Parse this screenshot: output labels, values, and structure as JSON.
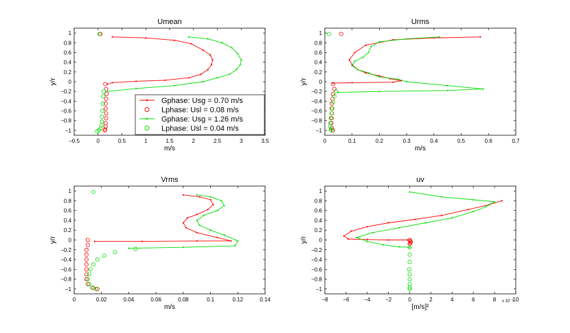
{
  "figure": {
    "colors": {
      "series1": "#ff0000",
      "series2": "#00dd00",
      "axes": "#000000"
    },
    "legend": {
      "entries": [
        {
          "label": "Gphase: Usg = 0.70 m/s",
          "marker": "line-dot",
          "color": "#ff0000"
        },
        {
          "label": "Lphase: Usl = 0.08 m/s",
          "marker": "circle",
          "color": "#ff0000"
        },
        {
          "label": "Gphase: Usg = 1.26 m/s",
          "marker": "line-dot",
          "color": "#00dd00"
        },
        {
          "label": "Lphase: Usl = 0.04 m/s",
          "marker": "circle",
          "color": "#00dd00"
        }
      ]
    }
  },
  "chart_data": [
    {
      "type": "line",
      "title": "Umean",
      "xlabel": "m/s",
      "ylabel": "y/r",
      "xlim": [
        -0.5,
        3.5
      ],
      "ylim": [
        -1.1,
        1.1
      ],
      "xticks": [
        "−0.5",
        "0",
        "0.5",
        "1",
        "1.5",
        "2",
        "2.5",
        "3",
        "3.5"
      ],
      "xtick_values": [
        -0.5,
        0,
        0.5,
        1,
        1.5,
        2,
        2.5,
        3,
        3.5
      ],
      "yticks": [
        "−1",
        "−0.8",
        "−0.6",
        "−0.4",
        "−0.2",
        "0",
        "0.2",
        "0.4",
        "0.6",
        "0.8",
        "1"
      ],
      "ytick_values": [
        -1,
        -0.8,
        -0.6,
        -0.4,
        -0.2,
        0,
        0.2,
        0.4,
        0.6,
        0.8,
        1
      ],
      "multiplier": "",
      "series": [
        {
          "name": "Gphase: Usg = 0.70 m/s",
          "color": "#ff0000",
          "kind": "line",
          "x": [
            0.3,
            1.0,
            1.6,
            1.95,
            2.2,
            2.35,
            2.4,
            2.38,
            2.3,
            2.15,
            1.9,
            1.4,
            0.8,
            0.3,
            0.2
          ],
          "y": [
            0.92,
            0.9,
            0.85,
            0.78,
            0.65,
            0.55,
            0.45,
            0.35,
            0.25,
            0.15,
            0.08,
            0.03,
            0.01,
            -0.02,
            -0.05
          ]
        },
        {
          "name": "Lphase: Usl = 0.08 m/s",
          "color": "#ff0000",
          "kind": "circle",
          "x": [
            0.15,
            0.17,
            0.18,
            0.17,
            0.16,
            0.16,
            0.17,
            0.17,
            0.16,
            0.16,
            0.15,
            0.14,
            0.05
          ],
          "y": [
            -0.05,
            -0.15,
            -0.25,
            -0.35,
            -0.45,
            -0.55,
            -0.65,
            -0.75,
            -0.85,
            -0.92,
            -0.98,
            -1.0,
            0.98
          ]
        },
        {
          "name": "Gphase: Usg = 1.26 m/s",
          "color": "#00dd00",
          "kind": "line",
          "x": [
            1.9,
            2.3,
            2.6,
            2.8,
            2.92,
            3.0,
            2.98,
            2.9,
            2.75,
            2.5,
            2.2,
            1.6,
            0.8,
            0.2
          ],
          "y": [
            0.92,
            0.88,
            0.8,
            0.7,
            0.58,
            0.45,
            0.35,
            0.25,
            0.15,
            0.08,
            0.0,
            -0.08,
            -0.14,
            -0.2
          ]
        },
        {
          "name": "Lphase: Usl = 0.04 m/s",
          "color": "#00dd00",
          "kind": "circle",
          "x": [
            0.12,
            0.11,
            0.1,
            0.09,
            0.08,
            0.08,
            0.07,
            0.05,
            0.02,
            -0.02,
            0.03
          ],
          "y": [
            -0.2,
            -0.3,
            -0.45,
            -0.6,
            -0.72,
            -0.82,
            -0.9,
            -0.96,
            -1.0,
            -1.02,
            0.98
          ]
        }
      ]
    },
    {
      "type": "line",
      "title": "Urms",
      "xlabel": "m/s",
      "ylabel": "y/r",
      "xlim": [
        0,
        0.7
      ],
      "ylim": [
        -1.1,
        1.1
      ],
      "xticks": [
        "0",
        "0.1",
        "0.2",
        "0.3",
        "0.4",
        "0.5",
        "0.6",
        "0.7"
      ],
      "xtick_values": [
        0,
        0.1,
        0.2,
        0.3,
        0.4,
        0.5,
        0.6,
        0.7
      ],
      "yticks": [
        "−1",
        "−0.8",
        "−0.6",
        "−0.4",
        "−0.2",
        "0",
        "0.2",
        "0.4",
        "0.6",
        "0.8",
        "1"
      ],
      "ytick_values": [
        -1,
        -0.8,
        -0.6,
        -0.4,
        -0.2,
        0,
        0.2,
        0.4,
        0.6,
        0.8,
        1
      ],
      "multiplier": "",
      "series": [
        {
          "name": "Gphase: Usg = 0.70 m/s",
          "color": "#ff0000",
          "kind": "line",
          "x": [
            0.57,
            0.4,
            0.25,
            0.15,
            0.11,
            0.09,
            0.1,
            0.12,
            0.15,
            0.2,
            0.24,
            0.28,
            0.25,
            0.1,
            0.03
          ],
          "y": [
            0.92,
            0.9,
            0.86,
            0.75,
            0.6,
            0.45,
            0.35,
            0.25,
            0.18,
            0.12,
            0.06,
            0.02,
            -0.01,
            -0.02,
            -0.03
          ]
        },
        {
          "name": "Lphase: Usl = 0.08 m/s",
          "color": "#ff0000",
          "kind": "circle",
          "x": [
            0.03,
            0.035,
            0.03,
            0.028,
            0.025,
            0.025,
            0.026,
            0.025,
            0.024,
            0.025,
            0.03,
            0.06
          ],
          "y": [
            -0.05,
            -0.15,
            -0.25,
            -0.35,
            -0.45,
            -0.55,
            -0.65,
            -0.75,
            -0.85,
            -0.95,
            -1.0,
            0.98
          ]
        },
        {
          "name": "Gphase: Usg = 1.26 m/s",
          "color": "#00dd00",
          "kind": "line",
          "x": [
            0.42,
            0.3,
            0.2,
            0.17,
            0.16,
            0.14,
            0.11,
            0.1,
            0.12,
            0.16,
            0.2,
            0.27,
            0.3,
            0.45,
            0.58,
            0.45,
            0.2,
            0.05
          ],
          "y": [
            0.92,
            0.88,
            0.82,
            0.72,
            0.6,
            0.5,
            0.42,
            0.33,
            0.25,
            0.18,
            0.1,
            0.05,
            0.0,
            -0.08,
            -0.15,
            -0.18,
            -0.2,
            -0.22
          ]
        },
        {
          "name": "Lphase: Usl = 0.04 m/s",
          "color": "#00dd00",
          "kind": "circle",
          "x": [
            0.04,
            0.035,
            0.03,
            0.027,
            0.025,
            0.022,
            0.02,
            0.02,
            0.022,
            0.025,
            0.015
          ],
          "y": [
            -0.2,
            -0.3,
            -0.42,
            -0.55,
            -0.65,
            -0.75,
            -0.85,
            -0.92,
            -0.98,
            -1.0,
            0.98
          ]
        }
      ]
    },
    {
      "type": "line",
      "title": "Vrms",
      "xlabel": "m/s",
      "ylabel": "y/r",
      "xlim": [
        0,
        0.14
      ],
      "ylim": [
        -1.1,
        1.1
      ],
      "xticks": [
        "0",
        "0.02",
        "0.04",
        "0.06",
        "0.08",
        "0.1",
        "0.12",
        "0.14"
      ],
      "xtick_values": [
        0,
        0.02,
        0.04,
        0.06,
        0.08,
        0.1,
        0.12,
        0.14
      ],
      "yticks": [
        "−1",
        "−0.8",
        "−0.6",
        "−0.4",
        "−0.2",
        "0",
        "0.2",
        "0.4",
        "0.6",
        "0.8",
        "1"
      ],
      "ytick_values": [
        -1,
        -0.8,
        -0.6,
        -0.4,
        -0.2,
        0,
        0.2,
        0.4,
        0.6,
        0.8,
        1
      ],
      "multiplier": "",
      "series": [
        {
          "name": "Gphase: Usg = 0.70 m/s",
          "color": "#ff0000",
          "kind": "line",
          "x": [
            0.08,
            0.092,
            0.1,
            0.102,
            0.098,
            0.09,
            0.083,
            0.08,
            0.082,
            0.09,
            0.105,
            0.115,
            0.09,
            0.05,
            0.015
          ],
          "y": [
            0.92,
            0.88,
            0.82,
            0.72,
            0.62,
            0.52,
            0.45,
            0.35,
            0.25,
            0.15,
            0.05,
            -0.02,
            -0.02,
            -0.03,
            -0.03
          ]
        },
        {
          "name": "Lphase: Usl = 0.08 m/s",
          "color": "#ff0000",
          "kind": "circle",
          "x": [
            0.01,
            0.01,
            0.009,
            0.009,
            0.009,
            0.009,
            0.009,
            0.009,
            0.009,
            0.01,
            0.014,
            0.017
          ],
          "y": [
            0.0,
            -0.1,
            -0.2,
            -0.3,
            -0.4,
            -0.5,
            -0.6,
            -0.7,
            -0.8,
            -0.9,
            -0.98,
            -1.0
          ]
        },
        {
          "name": "Gphase: Usg = 1.26 m/s",
          "color": "#00dd00",
          "kind": "line",
          "x": [
            0.09,
            0.1,
            0.108,
            0.11,
            0.105,
            0.095,
            0.09,
            0.092,
            0.1,
            0.11,
            0.12,
            0.118,
            0.08,
            0.04
          ],
          "y": [
            0.92,
            0.88,
            0.8,
            0.7,
            0.6,
            0.5,
            0.4,
            0.3,
            0.2,
            0.1,
            -0.02,
            -0.12,
            -0.15,
            -0.17
          ]
        },
        {
          "name": "Lphase: Usl = 0.04 m/s",
          "color": "#00dd00",
          "kind": "circle",
          "x": [
            0.045,
            0.03,
            0.022,
            0.017,
            0.014,
            0.012,
            0.011,
            0.01,
            0.011,
            0.013,
            0.016,
            0.014
          ],
          "y": [
            -0.18,
            -0.25,
            -0.32,
            -0.4,
            -0.5,
            -0.6,
            -0.7,
            -0.8,
            -0.9,
            -0.97,
            -1.0,
            0.98
          ]
        }
      ]
    },
    {
      "type": "line",
      "title": "uv",
      "xlabel": "[m/s]²",
      "ylabel": "y/r",
      "xlim": [
        -8,
        10
      ],
      "ylim": [
        -1.1,
        1.1
      ],
      "xticks": [
        "−8",
        "−6",
        "−4",
        "−2",
        "0",
        "2",
        "4",
        "6",
        "8",
        "10"
      ],
      "xtick_values": [
        -8,
        -6,
        -4,
        -2,
        0,
        2,
        4,
        6,
        8,
        10
      ],
      "yticks": [
        "−1",
        "−0.8",
        "−0.6",
        "−0.4",
        "−0.2",
        "0",
        "0.2",
        "0.4",
        "0.6",
        "0.8",
        "1"
      ],
      "ytick_values": [
        -1,
        -0.8,
        -0.6,
        -0.4,
        -0.2,
        0,
        0.2,
        0.4,
        0.6,
        0.8,
        1
      ],
      "multiplier": "x 10⁻³",
      "series": [
        {
          "name": "Gphase: Usg = 0.70 m/s",
          "color": "#ff0000",
          "kind": "line",
          "x": [
            8.7,
            7.5,
            5.5,
            3.0,
            0.5,
            -2.0,
            -4.0,
            -5.5,
            -6.2,
            -5.8,
            -4.0,
            -2.0,
            -0.2
          ],
          "y": [
            0.8,
            0.72,
            0.62,
            0.5,
            0.42,
            0.35,
            0.27,
            0.18,
            0.08,
            0.02,
            0.01,
            0.0,
            0.0
          ]
        },
        {
          "name": "Lphase: Usl = 0.08 m/s",
          "color": "#ff0000",
          "kind": "circle",
          "x": [
            0.0,
            0.05,
            0.1,
            0.05,
            0.0
          ],
          "y": [
            0.0,
            -0.02,
            -0.04,
            -0.06,
            -0.08
          ]
        },
        {
          "name": "Gphase: Usg = 1.26 m/s",
          "color": "#00dd00",
          "kind": "line",
          "x": [
            0.0,
            3.0,
            6.0,
            8.0,
            7.2,
            6.0,
            4.0,
            1.5,
            -1.0,
            -3.5,
            -5.0,
            -4.0,
            -2.5,
            -1.0,
            0.0
          ],
          "y": [
            0.98,
            0.88,
            0.82,
            0.78,
            0.68,
            0.58,
            0.45,
            0.35,
            0.25,
            0.15,
            0.05,
            -0.03,
            -0.1,
            -0.14,
            -0.15
          ]
        },
        {
          "name": "Lphase: Usl = 0.04 m/s",
          "color": "#00dd00",
          "kind": "circle",
          "x": [
            0.0,
            0.0,
            0.0,
            -0.05,
            0.0,
            0.0,
            0.0,
            0.0,
            0.0
          ],
          "y": [
            -0.15,
            -0.3,
            -0.45,
            -0.6,
            -0.7,
            -0.8,
            -0.9,
            -0.97,
            -1.0
          ]
        }
      ]
    }
  ]
}
